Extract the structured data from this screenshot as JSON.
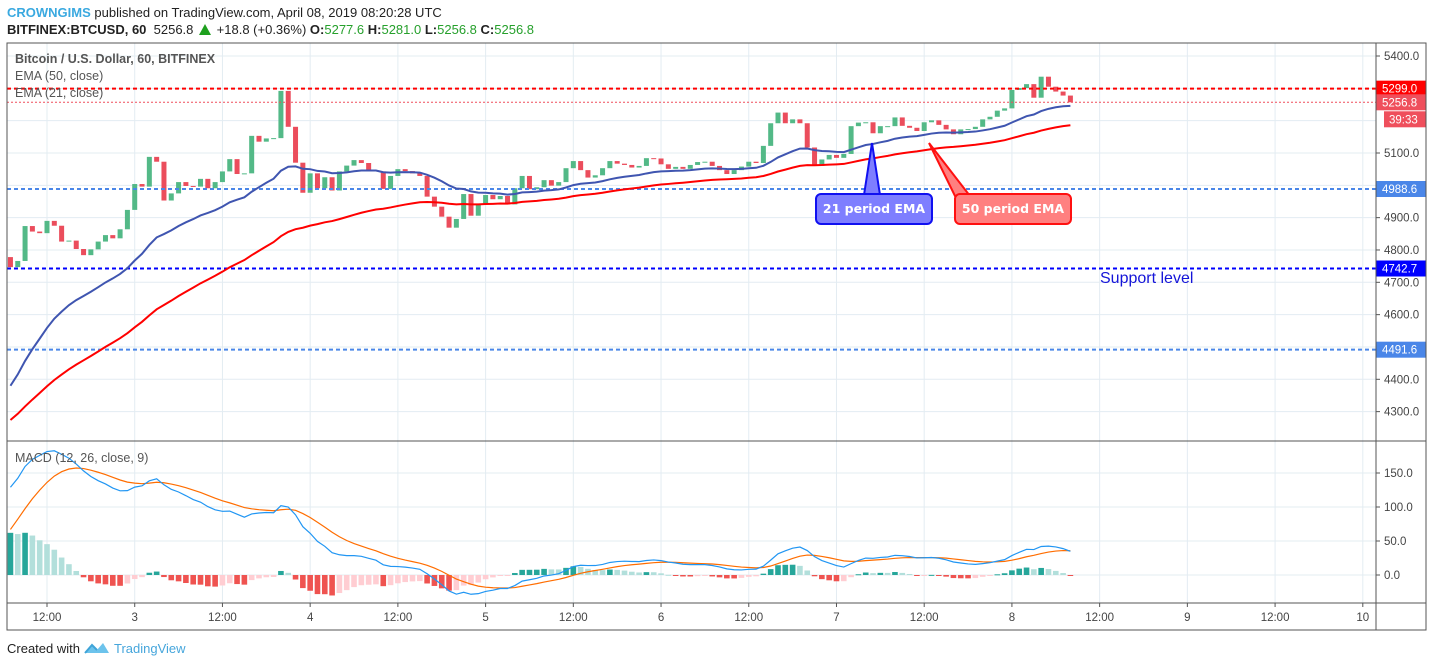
{
  "header": {
    "author": "CROWNGIMS",
    "published": "published on TradingView.com, April 08, 2019 08:20:28 UTC",
    "symbol": "BITFINEX:BTCUSD, 60",
    "last": "5256.8",
    "change": "+18.8 (+0.36%)",
    "o_label": "O:",
    "o": "5277.6",
    "h_label": "H:",
    "h": "5281.0",
    "l_label": "L:",
    "l": "5256.8",
    "c_label": "C:",
    "c": "5256.8"
  },
  "legend": {
    "title": "Bitcoin / U.S. Dollar, 60, BITFINEX",
    "ema50": "EMA (50, close)",
    "ema21": "EMA (21, close)",
    "macd": "MACD (12, 26, close, 9)"
  },
  "annotations": {
    "support": "Support level",
    "ema21_callout": "21 period EMA",
    "ema50_callout": "50 period EMA"
  },
  "footer": {
    "created_with": "Created with",
    "brand": "TradingView"
  },
  "chart_data": {
    "type": "candlestick",
    "interval_minutes": 60,
    "time_start": "2019-04-02 07:00 UTC",
    "first_open": 4778,
    "closes": [
      4747,
      4766,
      4874,
      4857,
      4852,
      4890,
      4875,
      4826,
      4829,
      4803,
      4784,
      4802,
      4826,
      4846,
      4836,
      4864,
      4924,
      5004,
      4996,
      5088,
      5073,
      4953,
      4975,
      5010,
      4998,
      4996,
      5020,
      4991,
      5010,
      5043,
      5081,
      5035,
      5037,
      5153,
      5135,
      5145,
      5146,
      5292,
      5181,
      5070,
      4977,
      5037,
      4991,
      5025,
      4984,
      5043,
      5061,
      5078,
      5069,
      5047,
      5043,
      4989,
      5029,
      5050,
      5044,
      5037,
      5029,
      4965,
      4934,
      4903,
      4869,
      4896,
      4973,
      4906,
      4942,
      4970,
      4957,
      4967,
      4941,
      4991,
      5029,
      4988,
      4994,
      5016,
      4999,
      5010,
      5053,
      5075,
      5047,
      5024,
      5031,
      5053,
      5075,
      5067,
      5063,
      5055,
      5060,
      5084,
      5083,
      5065,
      5051,
      5057,
      5051,
      5063,
      5072,
      5073,
      5060,
      5047,
      5035,
      5047,
      5058,
      5073,
      5069,
      5122,
      5192,
      5225,
      5192,
      5204,
      5192,
      5117,
      5060,
      5080,
      5094,
      5085,
      5097,
      5183,
      5194,
      5195,
      5161,
      5183,
      5183,
      5210,
      5184,
      5178,
      5168,
      5195,
      5201,
      5187,
      5173,
      5158,
      5173,
      5174,
      5181,
      5204,
      5212,
      5231,
      5238,
      5295,
      5301,
      5313,
      5271,
      5336,
      5305,
      5290,
      5277.6,
      5256.8
    ],
    "ema21_first": 4380,
    "ema50_first": 4274,
    "macd_first": 129,
    "signal_first": 67,
    "price_ylim": [
      4240,
      5450
    ],
    "price_ticks": [
      5400,
      5100,
      4900,
      4800,
      4700,
      4600,
      4400,
      4300
    ],
    "price_gridlines": [
      5400,
      5300,
      5200,
      5100,
      5000,
      4900,
      4800,
      4700,
      4600,
      4500,
      4400,
      4300
    ],
    "macd_ylim": [
      -40,
      195
    ],
    "macd_ticks": [
      "150.0",
      "100.0",
      "50.0",
      "0.0"
    ],
    "x_ticks": [
      "12:00",
      "3",
      "12:00",
      "4",
      "12:00",
      "5",
      "12:00",
      "6",
      "12:00",
      "7",
      "12:00",
      "8",
      "12:00",
      "9",
      "12:00",
      "10"
    ],
    "levels": [
      {
        "value": "5299.0",
        "color": "#ff0000",
        "style": "dashed"
      },
      {
        "value": "5256.8",
        "color": "#ef4f5c",
        "style": "dotted"
      },
      {
        "value": "4988.6",
        "color": "#4a86e8",
        "style": "dashed"
      },
      {
        "value": "4742.7",
        "color": "#0000ff",
        "style": "dashed"
      },
      {
        "value": "4491.6",
        "color": "#4a86e8",
        "style": "dashed"
      }
    ],
    "countdown": "39:33",
    "colors": {
      "up": "#53b987",
      "down": "#eb4d5c",
      "ema21": "#3f55b0",
      "ema50": "#ff0000",
      "macd": "#2196f3",
      "signal": "#ff6d00",
      "hist_up_strong": "#26a69a",
      "hist_up_weak": "#b2dfdb",
      "hist_down_strong": "#ef5350",
      "hist_down_weak": "#ffcdd2",
      "grid": "#e3ecf2"
    }
  }
}
